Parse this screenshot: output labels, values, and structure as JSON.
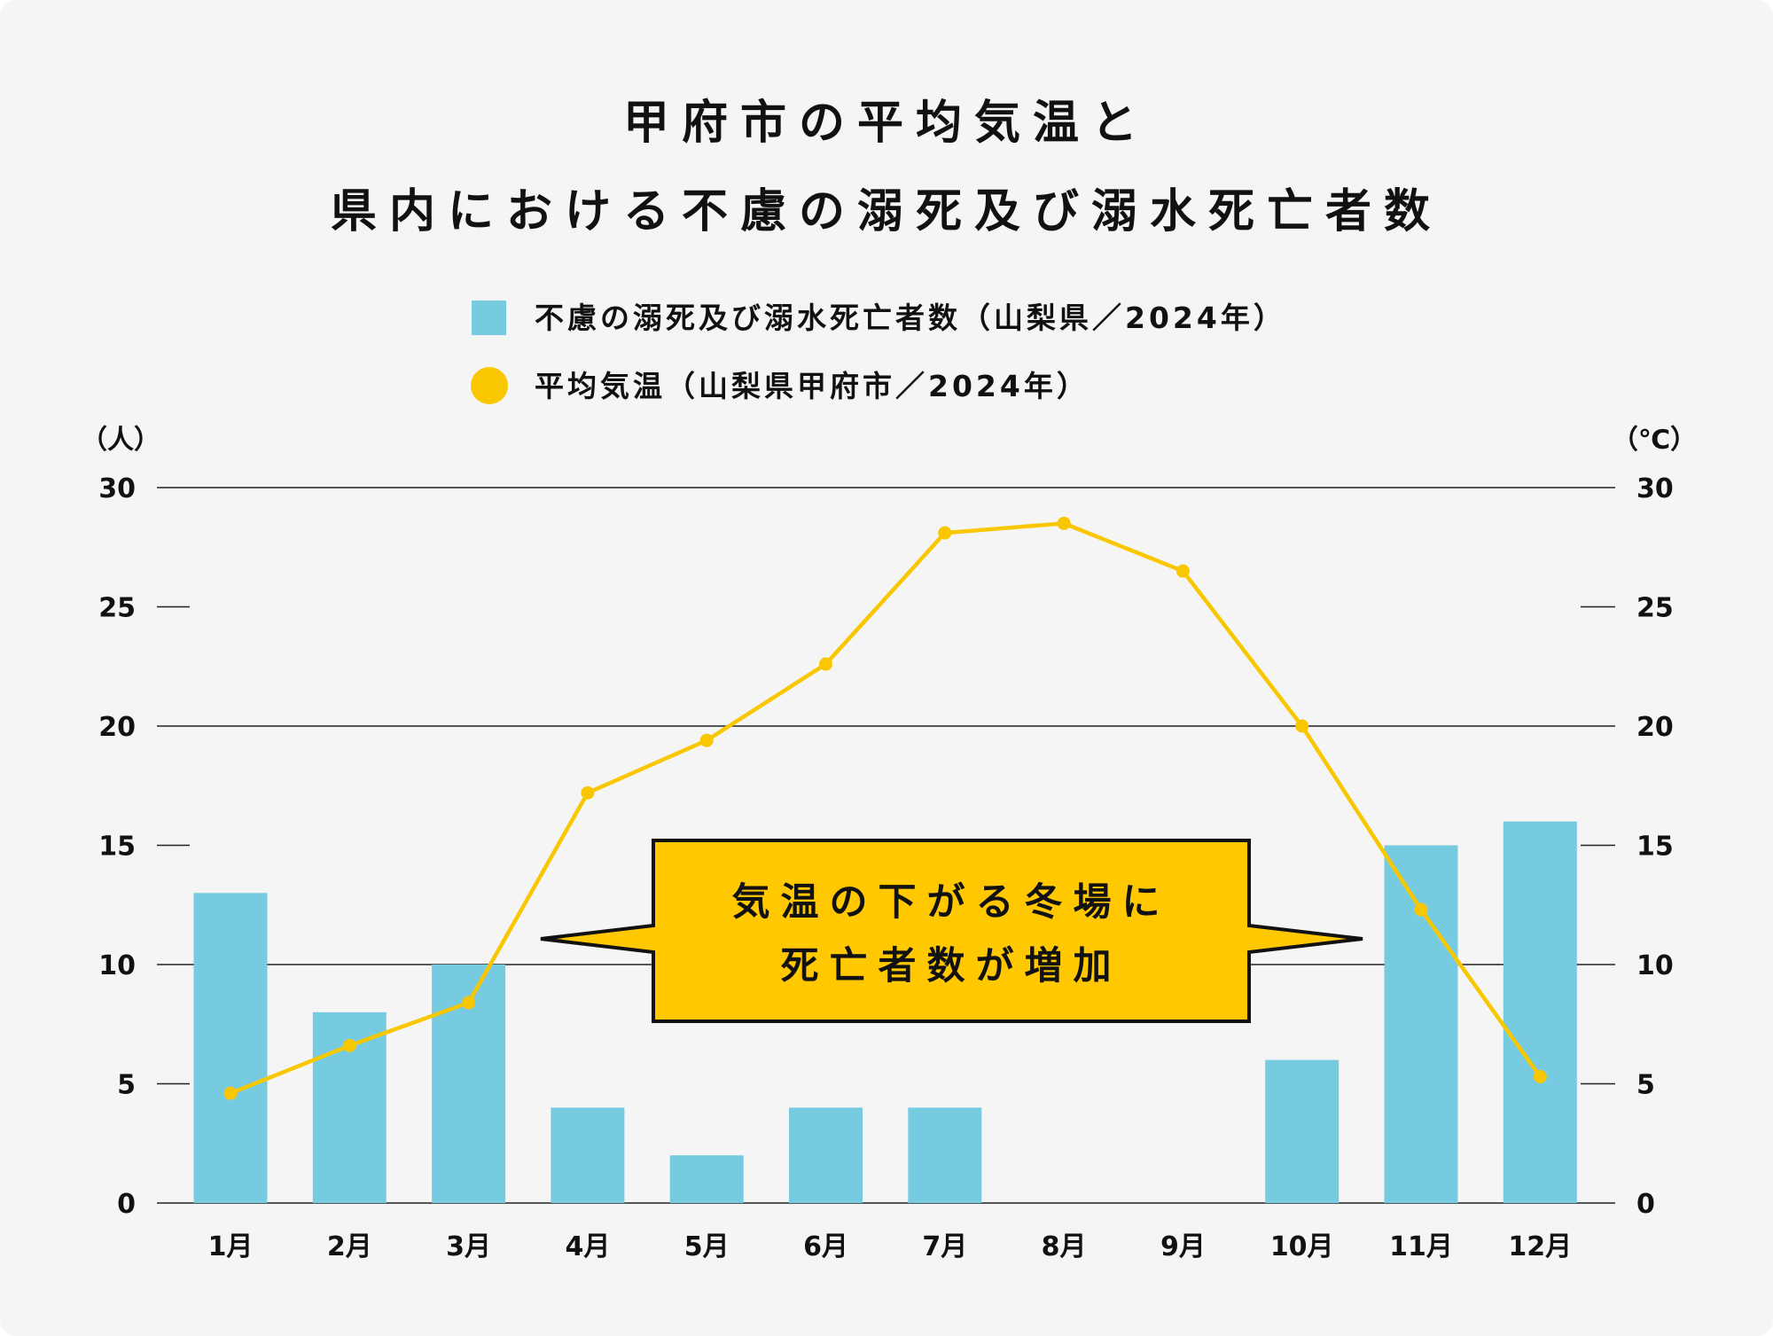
{
  "chart_data": {
    "type": "bar+line",
    "title": [
      "甲府市の平均気温と",
      "県内における不慮の溺死及び溺水死亡者数"
    ],
    "categories": [
      "1月",
      "2月",
      "3月",
      "4月",
      "5月",
      "6月",
      "7月",
      "8月",
      "9月",
      "10月",
      "11月",
      "12月"
    ],
    "series": [
      {
        "name": "不慮の溺死及び溺水死亡者数（山梨県／2024年）",
        "type": "bar",
        "axis": "left",
        "color": "#76cbe1",
        "values": [
          13,
          8,
          10,
          4,
          2,
          4,
          4,
          0,
          0,
          6,
          15,
          16
        ]
      },
      {
        "name": "平均気温（山梨県甲府市／2024年）",
        "type": "line",
        "axis": "right",
        "color": "#f9c700",
        "values": [
          4.6,
          6.6,
          8.4,
          17.2,
          19.4,
          22.6,
          28.1,
          28.5,
          26.5,
          20.0,
          12.3,
          5.3
        ]
      }
    ],
    "ylabel_left": "（人）",
    "ylabel_right": "（℃）",
    "ylim": [
      0,
      30
    ],
    "yticks": [
      "0",
      "5",
      "10",
      "15",
      "20",
      "25",
      "30"
    ],
    "grid": true,
    "legend_position": "top-center",
    "annotation": [
      "気温の下がる冬場に",
      "死亡者数が増加"
    ],
    "annotation_color": "#ffc800"
  }
}
